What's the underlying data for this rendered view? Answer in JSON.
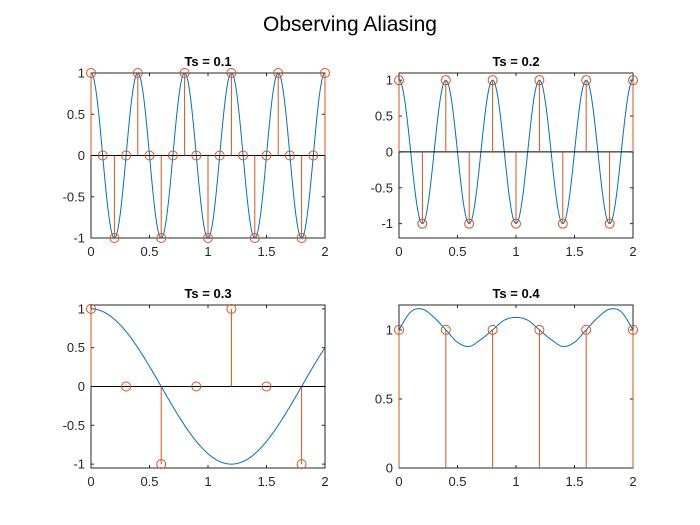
{
  "figure": {
    "title": "Observing Aliasing",
    "colors": {
      "continuous": "#0072BD",
      "samples": "#D95319",
      "axis": "#262626"
    }
  },
  "chart_data": [
    {
      "type": "line",
      "title": "Ts = 0.1",
      "xlim": [
        0,
        2
      ],
      "ylim": [
        -1,
        1
      ],
      "xticks": [
        "0",
        "0.5",
        "1",
        "1.5",
        "2"
      ],
      "yticks": [
        "-1",
        "-0.5",
        "0",
        "0.5",
        "1"
      ],
      "xtick_values": [
        0,
        0.5,
        1,
        1.5,
        2
      ],
      "ytick_values": [
        -1,
        -0.5,
        0,
        0.5,
        1
      ],
      "continuous_signal": "cos(5*pi*t)",
      "continuous_freq": 2.5,
      "series": [
        {
          "kind": "stem",
          "x": [
            0,
            0.1,
            0.2,
            0.3,
            0.4,
            0.5,
            0.6,
            0.7,
            0.8,
            0.9,
            1.0,
            1.1,
            1.2,
            1.3,
            1.4,
            1.5,
            1.6,
            1.7,
            1.8,
            1.9,
            2.0
          ],
          "y": [
            1,
            0,
            -1,
            0,
            1,
            0,
            -1,
            0,
            1,
            0,
            -1,
            0,
            1,
            0,
            -1,
            0,
            1,
            0,
            -1,
            0,
            1
          ]
        }
      ]
    },
    {
      "type": "line",
      "title": "Ts = 0.2",
      "xlim": [
        0,
        2
      ],
      "ylim": [
        -1.2,
        1.1
      ],
      "xticks": [
        "0",
        "0.5",
        "1",
        "1.5",
        "2"
      ],
      "yticks": [
        "-1",
        "-0.5",
        "0",
        "0.5",
        "1"
      ],
      "xtick_values": [
        0,
        0.5,
        1,
        1.5,
        2
      ],
      "ytick_values": [
        -1,
        -0.5,
        0,
        0.5,
        1
      ],
      "continuous_signal": "cos(5*pi*t)",
      "continuous_freq": 2.5,
      "series": [
        {
          "kind": "stem",
          "x": [
            0,
            0.2,
            0.4,
            0.6,
            0.8,
            1.0,
            1.2,
            1.4,
            1.6,
            1.8,
            2.0
          ],
          "y": [
            1,
            -1,
            1,
            -1,
            1,
            -1,
            1,
            -1,
            1,
            -1,
            1
          ]
        }
      ]
    },
    {
      "type": "line",
      "title": "Ts = 0.3",
      "xlim": [
        0,
        2
      ],
      "ylim": [
        -1.05,
        1.05
      ],
      "xticks": [
        "0",
        "0.5",
        "1",
        "1.5",
        "2"
      ],
      "yticks": [
        "-1",
        "-0.5",
        "0",
        "0.5",
        "1"
      ],
      "xtick_values": [
        0,
        0.5,
        1,
        1.5,
        2
      ],
      "ytick_values": [
        -1,
        -0.5,
        0,
        0.5,
        1
      ],
      "continuous_signal": "cos(5*pi*t/6)",
      "continuous_freq": 0.41667,
      "series": [
        {
          "kind": "stem",
          "x": [
            0,
            0.3,
            0.6,
            0.9,
            1.2,
            1.5,
            1.8
          ],
          "y": [
            1,
            0,
            -1,
            0,
            1,
            0,
            -1
          ]
        }
      ]
    },
    {
      "type": "line",
      "title": "Ts = 0.4",
      "xlim": [
        0,
        2
      ],
      "ylim": [
        0,
        1.18
      ],
      "xticks": [
        "0",
        "0.5",
        "1",
        "1.5",
        "2"
      ],
      "yticks": [
        "0",
        "0.5",
        "1"
      ],
      "xtick_values": [
        0,
        0.5,
        1,
        1.5,
        2
      ],
      "ytick_values": [
        0,
        0.5,
        1
      ],
      "continuous_signal": "interpolated",
      "continuous_curve": {
        "x": [
          0,
          0.1,
          0.2,
          0.3,
          0.4,
          0.5,
          0.6,
          0.7,
          0.8,
          0.9,
          1.0,
          1.1,
          1.2,
          1.3,
          1.4,
          1.5,
          1.6,
          1.7,
          1.8,
          1.9,
          2.0
        ],
        "y": [
          1.0,
          1.13,
          1.15,
          1.09,
          1.0,
          0.91,
          0.88,
          0.93,
          1.0,
          1.07,
          1.09,
          1.07,
          1.0,
          0.93,
          0.88,
          0.91,
          1.0,
          1.09,
          1.15,
          1.13,
          1.0
        ]
      },
      "series": [
        {
          "kind": "stem",
          "x": [
            0,
            0.4,
            0.8,
            1.2,
            1.6,
            2.0
          ],
          "y": [
            1,
            1,
            1,
            1,
            1,
            1
          ]
        }
      ]
    }
  ]
}
